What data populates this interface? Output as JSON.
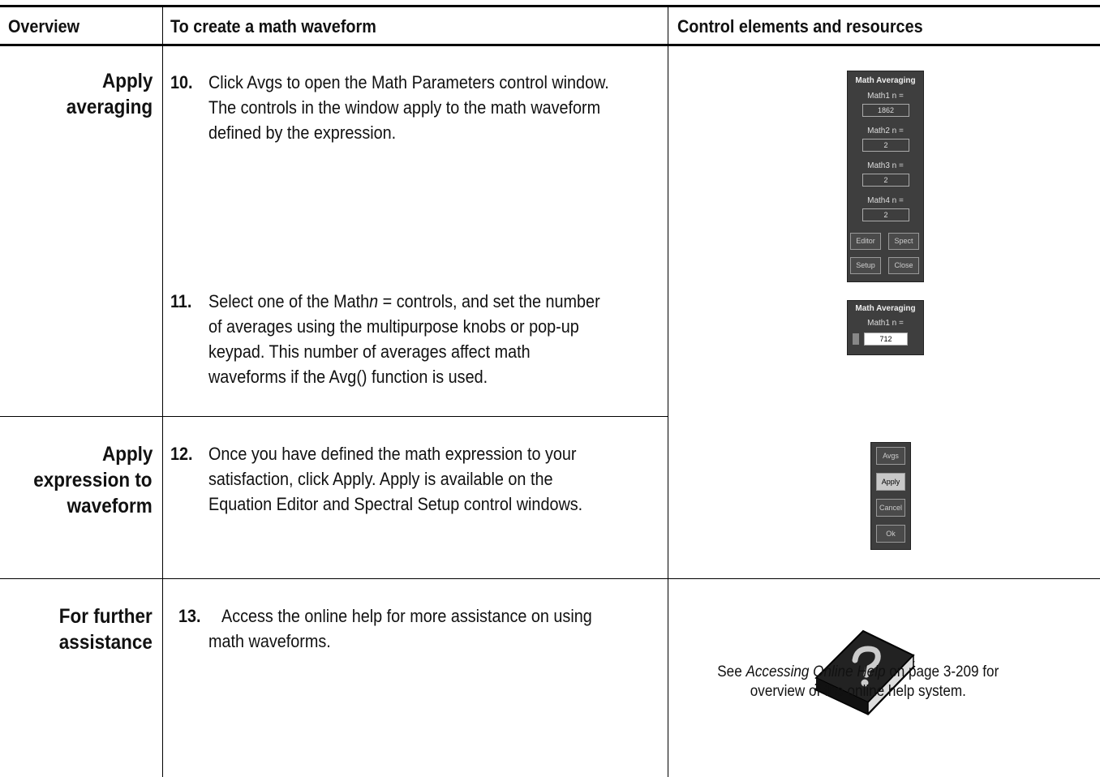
{
  "header": {
    "columns": [
      "Overview",
      "To create a math waveform",
      "Control elements and resources"
    ]
  },
  "rows": [
    {
      "overview": [
        "Apply",
        "averaging"
      ],
      "steps": [
        {
          "number": "10.",
          "lines": [
            [
              "Click Avgs to open the Math Parameters control window."
            ],
            [
              "The controls in the window apply to the math waveform"
            ],
            [
              "defined by the expression."
            ]
          ]
        },
        {
          "number": "11.",
          "lines": [
            [
              "Select one of the Math",
              {
                "text": "n",
                "style": "italic"
              },
              " = controls, and set the number"
            ],
            [
              "of averages using the multipurpose knobs or pop-up"
            ],
            [
              "keypad. This number of averages affect math"
            ],
            [
              "waveforms if the Avg() function is used."
            ]
          ]
        }
      ]
    },
    {
      "overview": [
        "Apply",
        "expression to",
        "waveform"
      ],
      "steps": [
        {
          "number": "12.",
          "lines": [
            [
              "Once you have defined the math expression to your"
            ],
            [
              "satisfaction, click Apply. Apply is available on the"
            ],
            [
              "Equation Editor and Spectral Setup control windows."
            ]
          ]
        }
      ]
    },
    {
      "overview": [
        "For further",
        "assistance"
      ],
      "steps": [
        {
          "number": "13.",
          "lines": [
            [
              "Access the online help for more assistance on using"
            ],
            [
              "math waveforms."
            ]
          ]
        }
      ]
    }
  ],
  "math_averaging_panel": {
    "title": "Math Averaging",
    "fields": [
      {
        "label": "Math1 n =",
        "value": "1862"
      },
      {
        "label": "Math2 n =",
        "value": "2"
      },
      {
        "label": "Math3 n =",
        "value": "2"
      },
      {
        "label": "Math4 n =",
        "value": "2"
      }
    ],
    "buttons": [
      "Editor",
      "Spect",
      "Setup",
      "Close"
    ]
  },
  "math_averaging_small": {
    "title": "Math Averaging",
    "fields": [
      {
        "label": "Math1 n =",
        "value": "712"
      }
    ]
  },
  "button_panel": {
    "buttons": [
      "Avgs",
      "Apply",
      "Cancel",
      "Ok"
    ]
  },
  "help_caption": {
    "lines": [
      [
        "See ",
        {
          "text": "Accessing Online Help",
          "style": "italic"
        },
        " on page 3-209 for"
      ],
      [
        "overview of the online help system."
      ]
    ]
  }
}
